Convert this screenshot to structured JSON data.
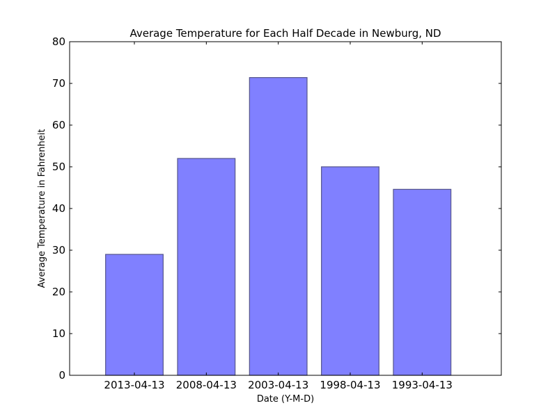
{
  "chart_data": {
    "type": "bar",
    "title": "Average Temperature for Each Half Decade in Newburg, ND",
    "xlabel": "Date (Y-M-D)",
    "ylabel": "Average Temperature in Fahrenheit",
    "categories": [
      "2013-04-13",
      "2008-04-13",
      "2003-04-13",
      "1998-04-13",
      "1993-04-13"
    ],
    "values": [
      29,
      52,
      71.4,
      50,
      44.6
    ],
    "ylim": [
      0,
      80
    ],
    "yticks": [
      0,
      10,
      20,
      30,
      40,
      50,
      60,
      70,
      80
    ],
    "grid": false,
    "bar_color": "#8080ff",
    "bar_edge_color": "#55558a"
  }
}
